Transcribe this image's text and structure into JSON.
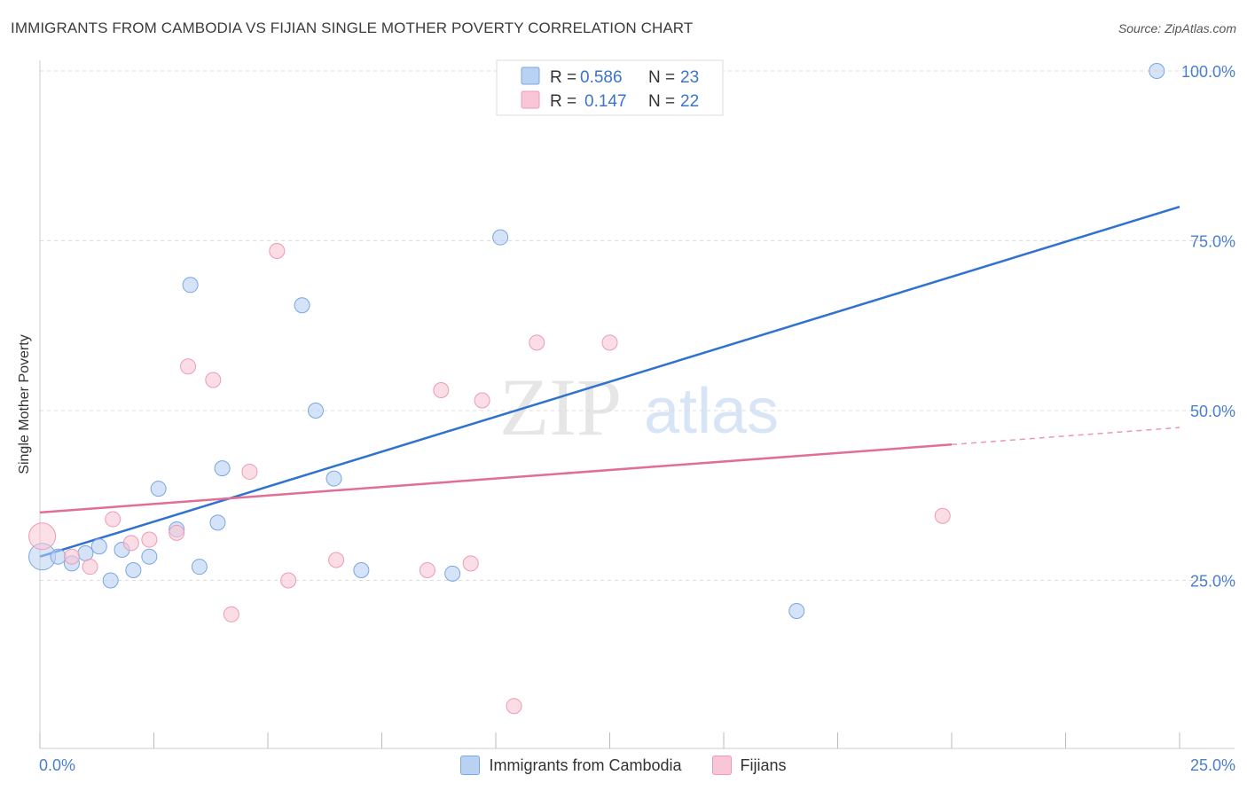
{
  "header": {
    "title": "IMMIGRANTS FROM CAMBODIA VS FIJIAN SINGLE MOTHER POVERTY CORRELATION CHART",
    "source": "Source: ZipAtlas.com"
  },
  "watermark": {
    "zip": "ZIP",
    "atlas": "atlas"
  },
  "colors": {
    "blue_fill": "#b9d1f3",
    "blue_stroke": "#7aa6e2",
    "blue_line": "#2f72cf",
    "pink_fill": "#f8c6d6",
    "pink_stroke": "#ee9ab6",
    "pink_line": "#e26d97",
    "tick_text": "#4a7fd0"
  },
  "legend": {
    "rows": [
      {
        "r_label": "R =",
        "r_value": "0.586",
        "n_label": "N =",
        "n_value": "23"
      },
      {
        "r_label": "R =",
        "r_value": "0.147",
        "n_label": "N =",
        "n_value": "22"
      }
    ]
  },
  "chart_data": {
    "type": "scatter",
    "title": "IMMIGRANTS FROM CAMBODIA VS FIJIAN SINGLE MOTHER POVERTY CORRELATION CHART",
    "xlabel": "",
    "ylabel": "Single Mother Poverty",
    "xlim": [
      0,
      25
    ],
    "ylim": [
      0,
      102
    ],
    "x_tick_labels": [
      "0.0%",
      "25.0%"
    ],
    "y_ticks": [
      25,
      50,
      75,
      100
    ],
    "y_tick_labels": [
      "25.0%",
      "50.0%",
      "75.0%",
      "100.0%"
    ],
    "series": [
      {
        "name": "Immigrants from Cambodia",
        "points": [
          [
            0.05,
            28.5
          ],
          [
            0.4,
            28.5
          ],
          [
            0.7,
            27.5
          ],
          [
            1.0,
            29.0
          ],
          [
            1.3,
            30.0
          ],
          [
            1.55,
            25.0
          ],
          [
            1.8,
            29.5
          ],
          [
            2.05,
            26.5
          ],
          [
            2.4,
            28.5
          ],
          [
            2.6,
            38.5
          ],
          [
            3.0,
            32.5
          ],
          [
            3.3,
            68.5
          ],
          [
            3.5,
            27.0
          ],
          [
            3.9,
            33.5
          ],
          [
            4.0,
            41.5
          ],
          [
            5.75,
            65.5
          ],
          [
            6.05,
            50.0
          ],
          [
            6.45,
            40.0
          ],
          [
            7.05,
            26.5
          ],
          [
            9.05,
            26.0
          ],
          [
            10.1,
            75.5
          ],
          [
            16.6,
            20.5
          ],
          [
            24.5,
            100.0
          ]
        ],
        "trend": {
          "x0": 0,
          "y0": 28.5,
          "x1": 25,
          "y1": 80.0
        }
      },
      {
        "name": "Fijians",
        "points": [
          [
            0.05,
            31.5
          ],
          [
            0.7,
            28.5
          ],
          [
            1.1,
            27.0
          ],
          [
            1.6,
            34.0
          ],
          [
            2.0,
            30.5
          ],
          [
            2.4,
            31.0
          ],
          [
            3.0,
            32.0
          ],
          [
            3.25,
            56.5
          ],
          [
            3.8,
            54.5
          ],
          [
            4.2,
            20.0
          ],
          [
            4.6,
            41.0
          ],
          [
            5.2,
            73.5
          ],
          [
            5.45,
            25.0
          ],
          [
            6.5,
            28.0
          ],
          [
            8.5,
            26.5
          ],
          [
            8.8,
            53.0
          ],
          [
            9.45,
            27.5
          ],
          [
            9.7,
            51.5
          ],
          [
            10.4,
            6.5
          ],
          [
            10.9,
            60.0
          ],
          [
            12.5,
            60.0
          ],
          [
            19.8,
            34.5
          ]
        ],
        "trend": {
          "x0": 0,
          "y0": 35.0,
          "x1": 20,
          "y1": 45.0,
          "dashed_to_x": 25,
          "dashed_to_y": 47.5
        }
      }
    ]
  },
  "bottom_legend": [
    {
      "label": "Immigrants from Cambodia"
    },
    {
      "label": "Fijians"
    }
  ]
}
